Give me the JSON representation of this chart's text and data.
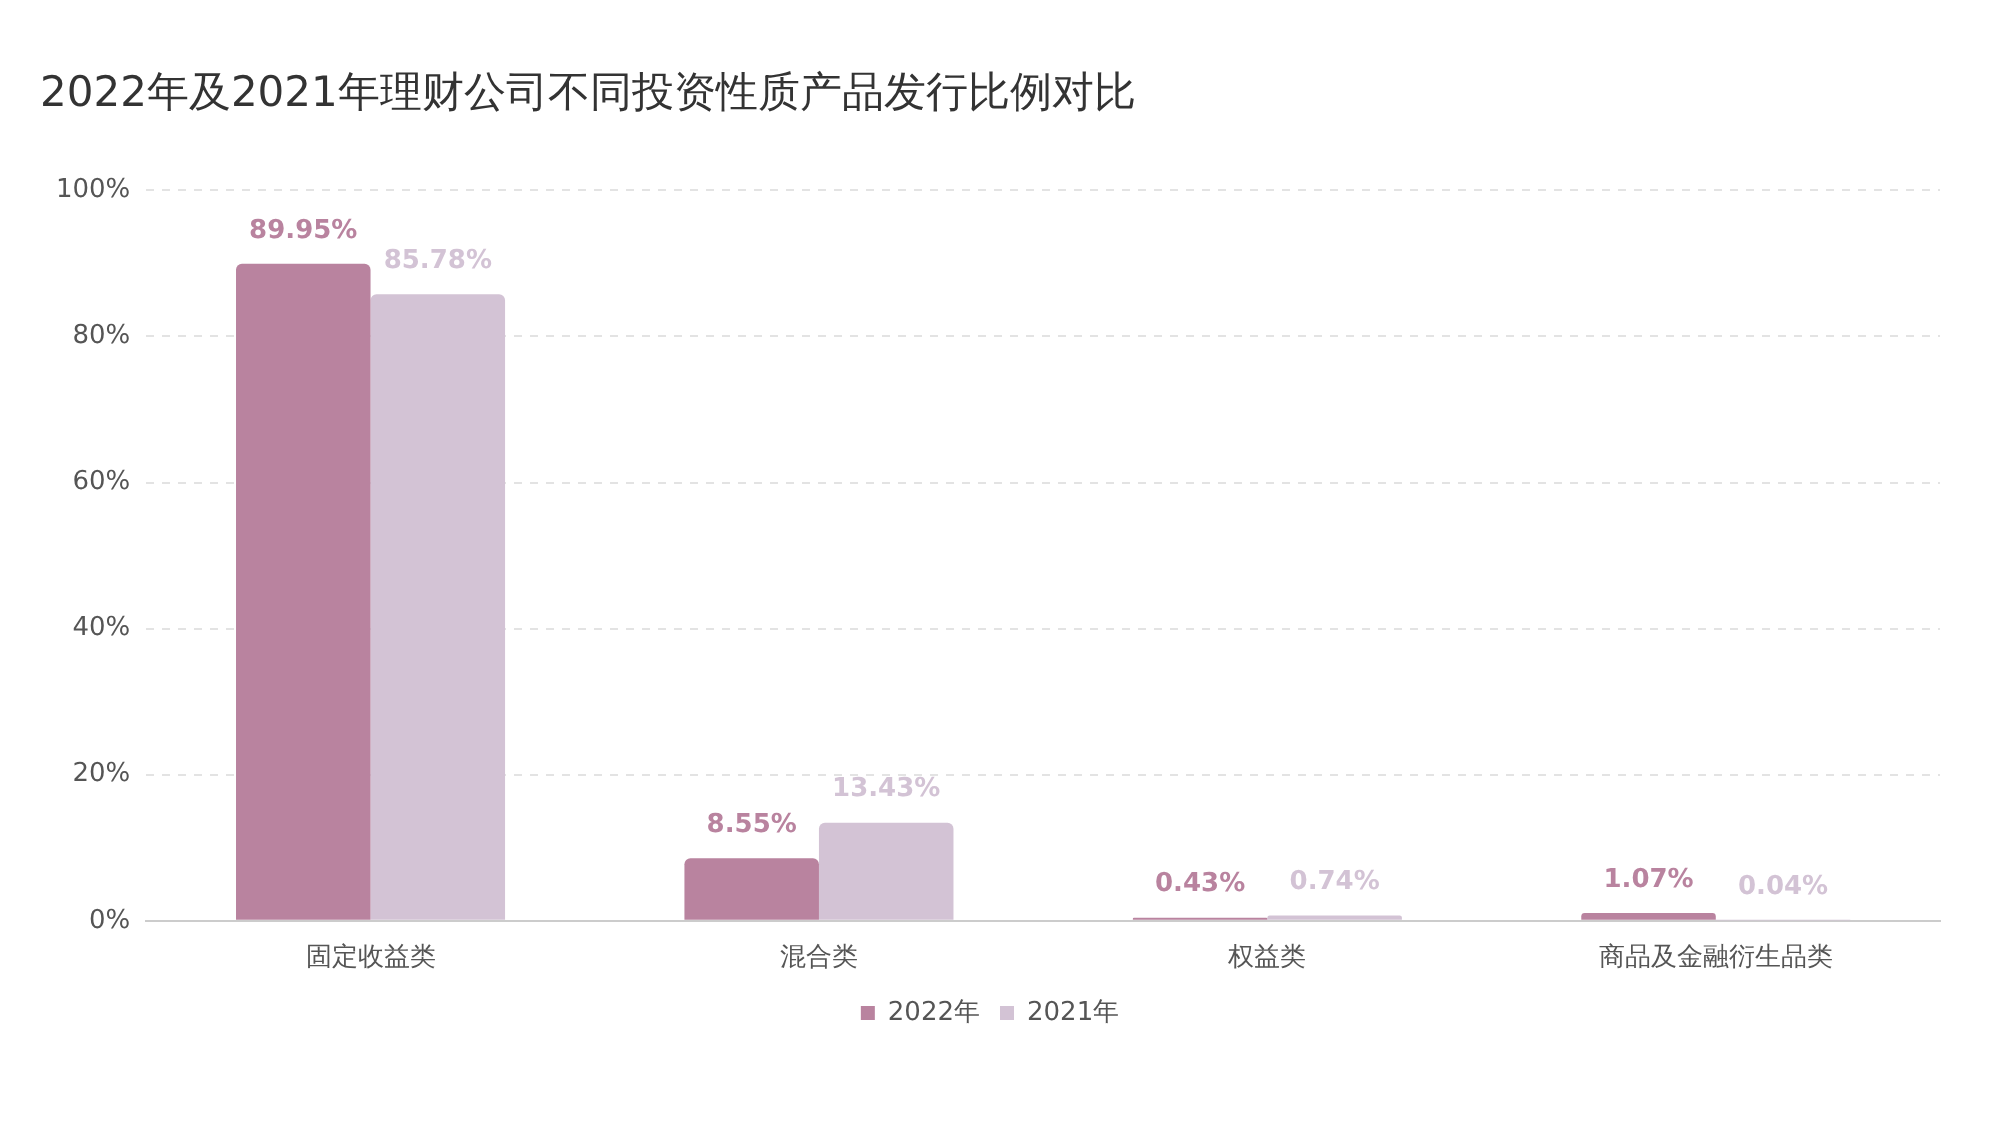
{
  "chart_data": {
    "type": "bar",
    "title": "2022年及2021年理财公司不同投资性质产品发行比例对比",
    "categories": [
      "固定收益类",
      "混合类",
      "权益类",
      "商品及金融衍生品类"
    ],
    "series": [
      {
        "name": "2022年",
        "color": "#b9839f",
        "values": [
          89.95,
          8.55,
          0.43,
          1.07
        ],
        "value_labels": [
          "89.95%",
          "8.55%",
          "0.43%",
          "1.07%"
        ]
      },
      {
        "name": "2021年",
        "color": "#d3c3d5",
        "values": [
          85.78,
          13.43,
          0.74,
          0.04
        ],
        "value_labels": [
          "85.78%",
          "13.43%",
          "0.74%",
          "0.04%"
        ]
      }
    ],
    "ylim": [
      0,
      100
    ],
    "yticks": [
      {
        "value": 0,
        "label": "0%"
      },
      {
        "value": 20,
        "label": "20%"
      },
      {
        "value": 40,
        "label": "40%"
      },
      {
        "value": 60,
        "label": "60%"
      },
      {
        "value": 80,
        "label": "80%"
      },
      {
        "value": 100,
        "label": "100%"
      }
    ],
    "grid": "y",
    "legend": "bottom"
  }
}
